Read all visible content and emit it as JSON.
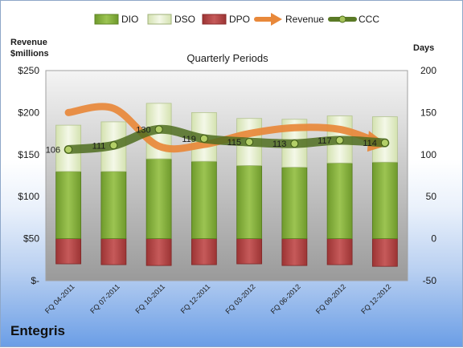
{
  "chart_data": {
    "type": "bar",
    "title": "Quarterly Periods",
    "company": "Entegris",
    "left_axis_title": [
      "Revenue",
      "$millions"
    ],
    "right_axis_title": "Days",
    "categories": [
      "FQ 04-2011",
      "FQ 07-2011",
      "FQ 10-2011",
      "FQ 12-2011",
      "FQ 03-2012",
      "FQ 06-2012",
      "FQ 09-2012",
      "FQ 12-2012"
    ],
    "left_ticks": [
      "$-",
      "$50",
      "$100",
      "$150",
      "$200",
      "$250"
    ],
    "left_ylim": [
      0,
      250
    ],
    "right_ticks": [
      "-50",
      "0",
      "50",
      "100",
      "150",
      "200"
    ],
    "right_ylim": [
      -50,
      200
    ],
    "series": [
      {
        "name": "DIO",
        "axis": "right",
        "kind": "stacked-bar",
        "color": "#86b23c",
        "values": [
          80,
          80,
          95,
          92,
          87,
          85,
          90,
          91
        ]
      },
      {
        "name": "DSO",
        "axis": "right",
        "kind": "stacked-bar",
        "color": "#e6efcf",
        "values": [
          55,
          59,
          66,
          58,
          56,
          57,
          56,
          54
        ]
      },
      {
        "name": "DPO",
        "axis": "right",
        "kind": "negative-bar",
        "color": "#b84a4a",
        "values": [
          -30,
          -31,
          -32,
          -31,
          -30,
          -32,
          -31,
          -33
        ]
      },
      {
        "name": "Revenue",
        "axis": "left",
        "kind": "line",
        "color": "#e8883a",
        "values": [
          200,
          205,
          160,
          162,
          175,
          182,
          180,
          163
        ]
      },
      {
        "name": "CCC",
        "axis": "right",
        "kind": "line",
        "color": "#5a7a26",
        "values": [
          106,
          111,
          130,
          119,
          115,
          113,
          117,
          114
        ],
        "data_labels": [
          "106",
          "111",
          "130",
          "119",
          "115",
          "113",
          "117",
          "114"
        ]
      }
    ],
    "legend_position": "top",
    "grid": false
  }
}
